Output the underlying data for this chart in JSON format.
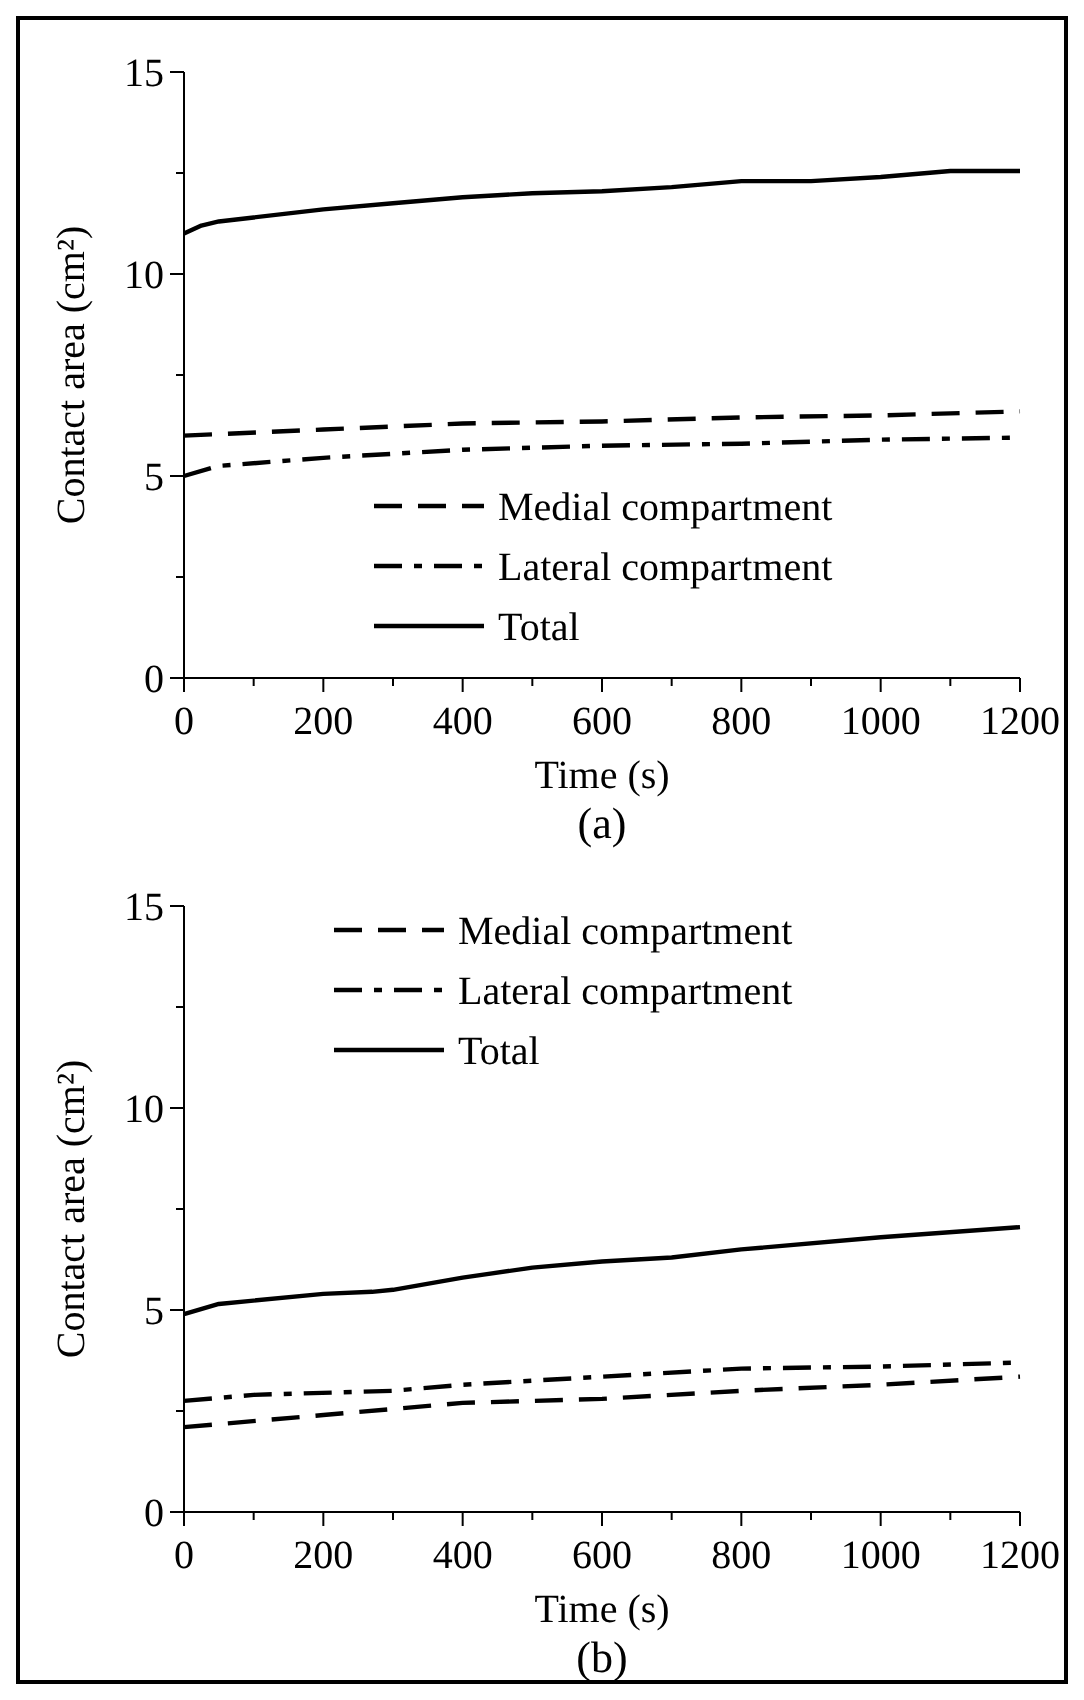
{
  "chart_data": [
    {
      "type": "line",
      "title": "(a)",
      "xlabel": "Time (s)",
      "ylabel": "Contact area (cm²)",
      "xlim": [
        0,
        1200
      ],
      "ylim": [
        0,
        15
      ],
      "xticks": [
        0,
        {
          "value": 100,
          "label": null
        },
        200,
        {
          "value": 300,
          "label": null
        },
        400,
        {
          "value": 500,
          "label": null
        },
        600,
        {
          "value": 700,
          "label": null
        },
        800,
        {
          "value": 900,
          "label": null
        },
        1000,
        {
          "value": 1100,
          "label": null
        },
        1200
      ],
      "yticks": [
        0,
        {
          "value": 2.5,
          "label": null
        },
        5,
        {
          "value": 7.5,
          "label": null
        },
        10,
        {
          "value": 12.5,
          "label": null
        },
        15
      ],
      "legend": "bottom",
      "grid": false,
      "marker": "none",
      "series": [
        {
          "name": "Medial compartment",
          "color": "#000000",
          "line_style": "dashed",
          "x": [
            0,
            200,
            400,
            600,
            800,
            1000,
            1200
          ],
          "values": [
            6.0,
            6.15,
            6.3,
            6.35,
            6.45,
            6.5,
            6.6
          ]
        },
        {
          "name": "Lateral compartment",
          "color": "#000000",
          "line_style": "dashdot",
          "x": [
            0,
            50,
            200,
            400,
            600,
            800,
            1000,
            1200
          ],
          "values": [
            5.0,
            5.25,
            5.45,
            5.65,
            5.75,
            5.8,
            5.9,
            5.95
          ]
        },
        {
          "name": "Total",
          "color": "#000000",
          "line_style": "solid",
          "x": [
            0,
            25,
            50,
            100,
            200,
            300,
            400,
            450,
            500,
            600,
            700,
            800,
            900,
            1000,
            1100,
            1200
          ],
          "values": [
            11.0,
            11.2,
            11.3,
            11.4,
            11.6,
            11.75,
            11.9,
            11.95,
            12.0,
            12.05,
            12.15,
            12.3,
            12.3,
            12.4,
            12.55,
            12.55
          ]
        }
      ]
    },
    {
      "type": "line",
      "title": "(b)",
      "xlabel": "Time (s)",
      "ylabel": "Contact area (cm²)",
      "xlim": [
        0,
        1200
      ],
      "ylim": [
        0,
        15
      ],
      "xticks": [
        0,
        {
          "value": 100,
          "label": null
        },
        200,
        {
          "value": 300,
          "label": null
        },
        400,
        {
          "value": 500,
          "label": null
        },
        600,
        {
          "value": 700,
          "label": null
        },
        800,
        {
          "value": 900,
          "label": null
        },
        1000,
        {
          "value": 1100,
          "label": null
        },
        1200
      ],
      "yticks": [
        0,
        {
          "value": 2.5,
          "label": null
        },
        5,
        {
          "value": 7.5,
          "label": null
        },
        10,
        {
          "value": 12.5,
          "label": null
        },
        15
      ],
      "legend": "top",
      "grid": false,
      "marker": "none",
      "series": [
        {
          "name": "Medial compartment",
          "color": "#000000",
          "line_style": "dashed",
          "x": [
            0,
            200,
            400,
            600,
            800,
            1000,
            1200
          ],
          "values": [
            2.1,
            2.4,
            2.7,
            2.8,
            3.0,
            3.15,
            3.35
          ]
        },
        {
          "name": "Lateral compartment",
          "color": "#000000",
          "line_style": "dashdot",
          "x": [
            0,
            100,
            300,
            400,
            600,
            800,
            1000,
            1200
          ],
          "values": [
            2.75,
            2.9,
            3.0,
            3.15,
            3.35,
            3.55,
            3.6,
            3.7
          ]
        },
        {
          "name": "Total",
          "color": "#000000",
          "line_style": "solid",
          "x": [
            0,
            50,
            200,
            270,
            300,
            400,
            500,
            600,
            700,
            800,
            1000,
            1200
          ],
          "values": [
            4.9,
            5.15,
            5.4,
            5.45,
            5.5,
            5.8,
            6.05,
            6.2,
            6.3,
            6.5,
            6.8,
            7.05
          ]
        }
      ]
    }
  ]
}
